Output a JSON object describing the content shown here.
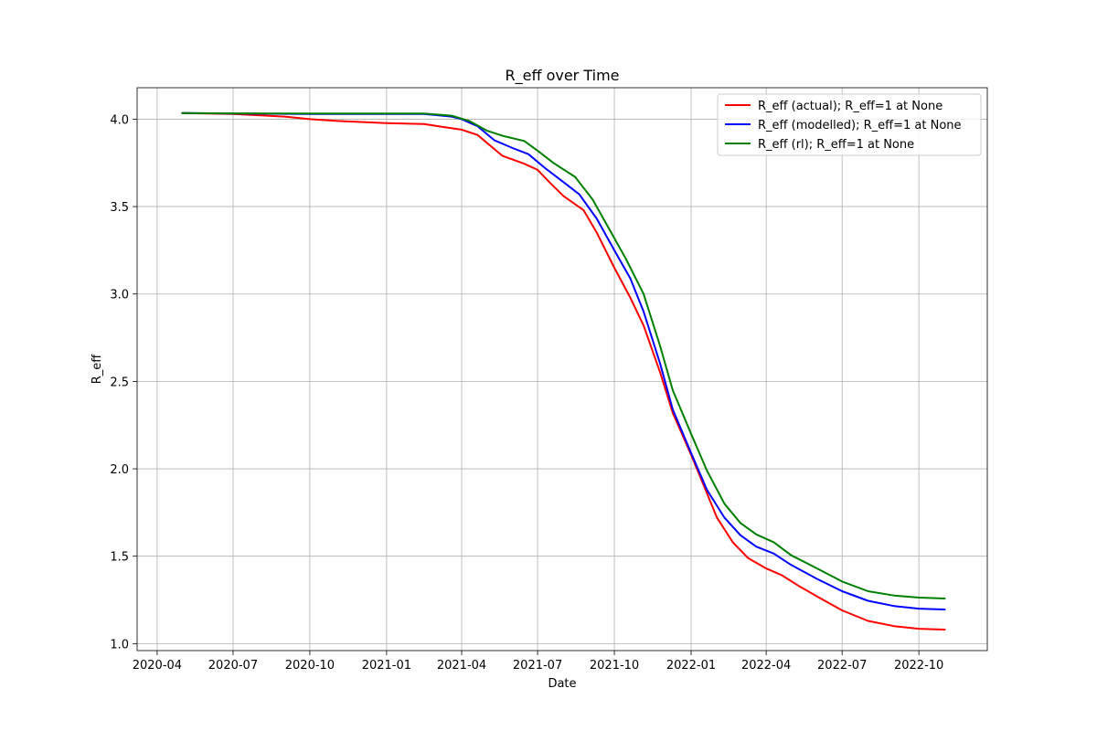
{
  "chart_data": {
    "type": "line",
    "title": "R_eff over Time",
    "xlabel": "Date",
    "ylabel": "R_eff",
    "xlim": [
      "2020-03-08",
      "2022-12-22"
    ],
    "ylim": [
      0.96,
      4.18
    ],
    "x_ticks": [
      "2020-04",
      "2020-07",
      "2020-10",
      "2021-01",
      "2021-04",
      "2021-07",
      "2021-10",
      "2022-01",
      "2022-04",
      "2022-07",
      "2022-10"
    ],
    "y_ticks": [
      "1.0",
      "1.5",
      "2.0",
      "2.5",
      "3.0",
      "3.5",
      "4.0"
    ],
    "grid": true,
    "legend_position": "top-right",
    "series": [
      {
        "name": "R_eff (actual); R_eff=1 at None",
        "color": "#ff0000",
        "points": [
          [
            "2020-05-01",
            4.035
          ],
          [
            "2020-07-01",
            4.03
          ],
          [
            "2020-09-01",
            4.015
          ],
          [
            "2020-10-01",
            4.0
          ],
          [
            "2020-11-01",
            3.99
          ],
          [
            "2021-01-01",
            3.977
          ],
          [
            "2021-02-15",
            3.972
          ],
          [
            "2021-03-10",
            3.955
          ],
          [
            "2021-04-01",
            3.94
          ],
          [
            "2021-04-20",
            3.91
          ],
          [
            "2021-05-10",
            3.83
          ],
          [
            "2021-05-20",
            3.79
          ],
          [
            "2021-06-15",
            3.745
          ],
          [
            "2021-07-01",
            3.71
          ],
          [
            "2021-07-15",
            3.64
          ],
          [
            "2021-08-01",
            3.56
          ],
          [
            "2021-08-25",
            3.48
          ],
          [
            "2021-09-10",
            3.35
          ],
          [
            "2021-10-01",
            3.15
          ],
          [
            "2021-10-20",
            2.98
          ],
          [
            "2021-11-05",
            2.82
          ],
          [
            "2021-11-25",
            2.55
          ],
          [
            "2021-12-10",
            2.32
          ],
          [
            "2022-01-01",
            2.08
          ],
          [
            "2022-01-20",
            1.86
          ],
          [
            "2022-02-01",
            1.72
          ],
          [
            "2022-02-20",
            1.58
          ],
          [
            "2022-03-10",
            1.49
          ],
          [
            "2022-04-01",
            1.43
          ],
          [
            "2022-04-20",
            1.39
          ],
          [
            "2022-05-10",
            1.33
          ],
          [
            "2022-06-01",
            1.27
          ],
          [
            "2022-07-01",
            1.19
          ],
          [
            "2022-08-01",
            1.13
          ],
          [
            "2022-09-01",
            1.1
          ],
          [
            "2022-10-01",
            1.085
          ],
          [
            "2022-11-01",
            1.08
          ]
        ]
      },
      {
        "name": "R_eff (modelled); R_eff=1 at None",
        "color": "#0000ff",
        "points": [
          [
            "2020-05-01",
            4.035
          ],
          [
            "2020-07-01",
            4.032
          ],
          [
            "2020-10-01",
            4.03
          ],
          [
            "2021-01-01",
            4.03
          ],
          [
            "2021-02-15",
            4.03
          ],
          [
            "2021-03-20",
            4.015
          ],
          [
            "2021-04-01",
            4.0
          ],
          [
            "2021-04-20",
            3.96
          ],
          [
            "2021-05-10",
            3.88
          ],
          [
            "2021-06-01",
            3.835
          ],
          [
            "2021-06-20",
            3.8
          ],
          [
            "2021-07-10",
            3.72
          ],
          [
            "2021-08-01",
            3.64
          ],
          [
            "2021-08-20",
            3.57
          ],
          [
            "2021-09-10",
            3.43
          ],
          [
            "2021-10-01",
            3.25
          ],
          [
            "2021-10-20",
            3.09
          ],
          [
            "2021-11-05",
            2.9
          ],
          [
            "2021-11-25",
            2.6
          ],
          [
            "2021-12-10",
            2.34
          ],
          [
            "2022-01-01",
            2.09
          ],
          [
            "2022-01-20",
            1.88
          ],
          [
            "2022-02-10",
            1.72
          ],
          [
            "2022-03-01",
            1.62
          ],
          [
            "2022-03-20",
            1.555
          ],
          [
            "2022-04-10",
            1.515
          ],
          [
            "2022-05-01",
            1.45
          ],
          [
            "2022-06-01",
            1.37
          ],
          [
            "2022-07-01",
            1.3
          ],
          [
            "2022-08-01",
            1.245
          ],
          [
            "2022-09-01",
            1.215
          ],
          [
            "2022-10-01",
            1.2
          ],
          [
            "2022-11-01",
            1.195
          ]
        ]
      },
      {
        "name": "R_eff (rl); R_eff=1 at None",
        "color": "#008000",
        "points": [
          [
            "2020-05-01",
            4.035
          ],
          [
            "2020-07-01",
            4.033
          ],
          [
            "2020-10-01",
            4.032
          ],
          [
            "2021-01-01",
            4.032
          ],
          [
            "2021-02-15",
            4.032
          ],
          [
            "2021-03-20",
            4.02
          ],
          [
            "2021-04-10",
            3.99
          ],
          [
            "2021-05-01",
            3.935
          ],
          [
            "2021-05-20",
            3.905
          ],
          [
            "2021-06-15",
            3.875
          ],
          [
            "2021-07-01",
            3.82
          ],
          [
            "2021-07-20",
            3.75
          ],
          [
            "2021-08-15",
            3.67
          ],
          [
            "2021-09-05",
            3.54
          ],
          [
            "2021-09-25",
            3.37
          ],
          [
            "2021-10-15",
            3.2
          ],
          [
            "2021-11-05",
            3.0
          ],
          [
            "2021-11-25",
            2.7
          ],
          [
            "2021-12-10",
            2.45
          ],
          [
            "2022-01-01",
            2.2
          ],
          [
            "2022-01-20",
            1.99
          ],
          [
            "2022-02-10",
            1.8
          ],
          [
            "2022-03-01",
            1.69
          ],
          [
            "2022-03-20",
            1.625
          ],
          [
            "2022-04-10",
            1.58
          ],
          [
            "2022-05-01",
            1.505
          ],
          [
            "2022-06-01",
            1.43
          ],
          [
            "2022-07-01",
            1.355
          ],
          [
            "2022-08-01",
            1.3
          ],
          [
            "2022-09-01",
            1.275
          ],
          [
            "2022-10-01",
            1.263
          ],
          [
            "2022-11-01",
            1.258
          ]
        ]
      }
    ]
  }
}
